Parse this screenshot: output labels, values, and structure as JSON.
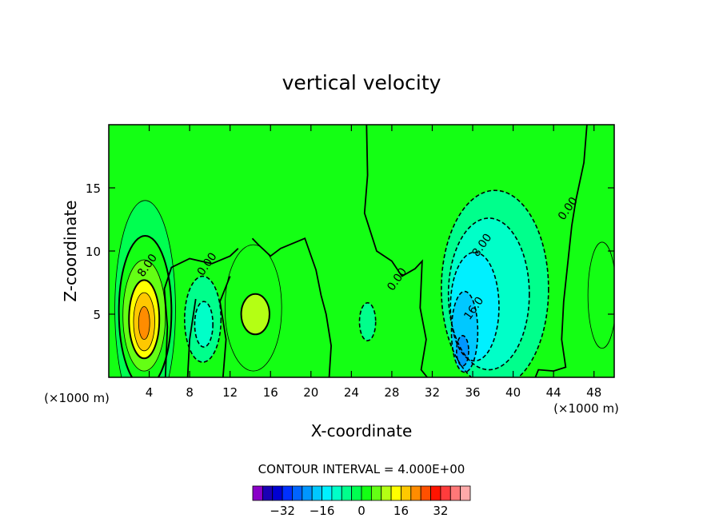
{
  "chart_data": {
    "type": "contour",
    "title": "vertical velocity",
    "xlabel": "X-coordinate",
    "ylabel": "Z-coordinate",
    "x_unit": "(×1000 m)",
    "y_unit": "(×1000 m)",
    "xlim": [
      0,
      50
    ],
    "ylim": [
      0,
      20
    ],
    "x_ticks": [
      "4",
      "8",
      "12",
      "16",
      "20",
      "24",
      "28",
      "32",
      "36",
      "40",
      "44",
      "48"
    ],
    "y_ticks": [
      "5",
      "10",
      "15"
    ],
    "contour_interval_text": "CONTOUR INTERVAL = 4.000E+00",
    "contour_labels": [
      {
        "text": "8.00",
        "x": 4.1,
        "y": 8.7
      },
      {
        "text": "0.00",
        "x": 10.0,
        "y": 8.8
      },
      {
        "text": "0.00",
        "x": 28.8,
        "y": 7.6
      },
      {
        "text": "8.00",
        "x": 37.2,
        "y": 10.3
      },
      {
        "text": "16.0",
        "x": 36.4,
        "y": 5.3
      },
      {
        "text": "0.00",
        "x": 45.7,
        "y": 13.2
      }
    ],
    "features": [
      {
        "kind": "updraft",
        "center_x": 3.5,
        "center_z": 4.2,
        "peak": 24
      },
      {
        "kind": "weak updraft",
        "center_x": 14.5,
        "center_z": 5.0,
        "peak": 12
      },
      {
        "kind": "downdraft",
        "center_x": 35.0,
        "center_z": 2.0,
        "peak": -20
      },
      {
        "kind": "weak downdraft",
        "center_x": 9.2,
        "center_z": 4.5,
        "peak": -8
      },
      {
        "kind": "weak downdraft",
        "center_x": 25.5,
        "center_z": 4.2,
        "peak": -4
      }
    ],
    "colorbar": {
      "levels": [
        -36,
        -32,
        -28,
        -24,
        -20,
        -16,
        -12,
        -8,
        -4,
        0,
        4,
        8,
        12,
        16,
        20,
        24,
        28,
        32,
        36
      ],
      "tick_labels": [
        "−32",
        "−16",
        "0",
        "16",
        "32"
      ],
      "colors": [
        "#8a00c8",
        "#1a00b4",
        "#0000d2",
        "#0030ff",
        "#0064ff",
        "#0096ff",
        "#00c8ff",
        "#00f0ff",
        "#00ffc8",
        "#00ff8c",
        "#00ff50",
        "#14ff14",
        "#64ff14",
        "#b4ff14",
        "#ffff00",
        "#ffc800",
        "#ff8c00",
        "#ff5000",
        "#ff1400",
        "#ff3c3c",
        "#ff7878",
        "#ffaaaa"
      ]
    }
  }
}
